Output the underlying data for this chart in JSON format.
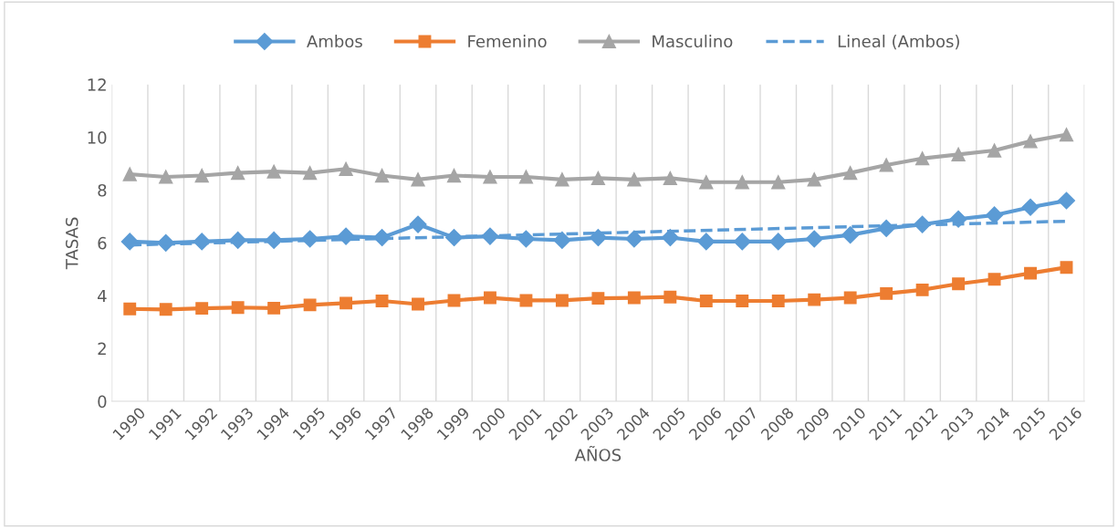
{
  "chart_data": {
    "type": "line",
    "xlabel": "AÑOS",
    "ylabel": "TASAS",
    "categories": [
      "1990",
      "1991",
      "1992",
      "1993",
      "1994",
      "1995",
      "1996",
      "1997",
      "1998",
      "1999",
      "2000",
      "2001",
      "2002",
      "2003",
      "2004",
      "2005",
      "2006",
      "2007",
      "2008",
      "2009",
      "2010",
      "2011",
      "2012",
      "2013",
      "2014",
      "2015",
      "2016"
    ],
    "series": [
      {
        "name": "Ambos",
        "color": "#5b9bd5",
        "marker": "diamond",
        "values": [
          6.05,
          6.0,
          6.05,
          6.1,
          6.1,
          6.15,
          6.25,
          6.2,
          6.7,
          6.2,
          6.25,
          6.15,
          6.1,
          6.2,
          6.15,
          6.2,
          6.05,
          6.05,
          6.05,
          6.15,
          6.3,
          6.55,
          6.7,
          6.9,
          7.05,
          7.35,
          7.6
        ]
      },
      {
        "name": "Femenino",
        "color": "#ed7d31",
        "marker": "square",
        "values": [
          3.5,
          3.48,
          3.52,
          3.55,
          3.53,
          3.65,
          3.72,
          3.8,
          3.68,
          3.82,
          3.92,
          3.82,
          3.82,
          3.9,
          3.92,
          3.95,
          3.8,
          3.8,
          3.8,
          3.85,
          3.92,
          4.08,
          4.22,
          4.45,
          4.62,
          4.85,
          5.07
        ]
      },
      {
        "name": "Masculino",
        "color": "#a5a5a5",
        "marker": "triangle",
        "values": [
          8.6,
          8.5,
          8.55,
          8.65,
          8.7,
          8.65,
          8.8,
          8.55,
          8.4,
          8.55,
          8.5,
          8.5,
          8.4,
          8.45,
          8.4,
          8.45,
          8.3,
          8.3,
          8.3,
          8.4,
          8.65,
          8.95,
          9.2,
          9.35,
          9.5,
          9.85,
          10.1
        ]
      },
      {
        "name": "Lineal (Ambos)",
        "color": "#5b9bd5",
        "marker": "none",
        "line_style": "dashed",
        "values": [
          5.92,
          null,
          null,
          null,
          null,
          null,
          null,
          null,
          null,
          null,
          null,
          null,
          null,
          null,
          null,
          null,
          null,
          null,
          null,
          null,
          null,
          null,
          null,
          null,
          null,
          null,
          6.82
        ]
      }
    ],
    "ylim": [
      0,
      12
    ],
    "yticks": [
      0,
      2,
      4,
      6,
      8,
      10,
      12
    ],
    "grid": "x",
    "legend": "top"
  }
}
